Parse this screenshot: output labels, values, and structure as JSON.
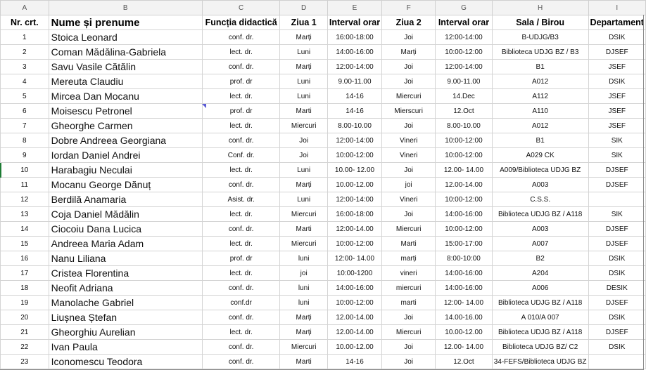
{
  "columns": [
    "A",
    "B",
    "C",
    "D",
    "E",
    "F",
    "G",
    "H",
    "I"
  ],
  "headers": [
    "Nr. crt.",
    "Nume și prenume",
    "Funcția didactică",
    "Ziua 1",
    "Interval orar",
    "Ziua 2",
    "Interval orar",
    "Sala / Birou",
    "Departament"
  ],
  "rows": [
    [
      "1",
      "Stoica Leonard",
      "conf. dr.",
      "Marți",
      "16:00-18:00",
      "Joi",
      "12:00-14:00",
      "B-UDJG/B3",
      "DSIK"
    ],
    [
      "2",
      "Coman Mădălina-Gabriela",
      "lect. dr.",
      "Luni",
      "14:00-16:00",
      "Marți",
      "10:00-12:00",
      "Biblioteca UDJG BZ / B3",
      "DJSEF"
    ],
    [
      "3",
      "Savu Vasile Cătălin",
      "conf. dr.",
      "Marți",
      "12:00-14:00",
      "Joi",
      "12:00-14:00",
      "B1",
      "JSEF"
    ],
    [
      "4",
      "Mereuta Claudiu",
      "prof. dr",
      "Luni",
      "9.00-11.00",
      "Joi",
      "9.00-11.00",
      "A012",
      "DSIK"
    ],
    [
      "5",
      "Mircea Dan Mocanu",
      "lect. dr.",
      "Luni",
      "14-16",
      "Miercuri",
      "14.Dec",
      "A112",
      "JSEF"
    ],
    [
      "6",
      "Moisescu Petronel",
      "prof. dr",
      "Marti",
      "14-16",
      "Mierscuri",
      "12.Oct",
      "A110",
      "JSEF"
    ],
    [
      "7",
      "Gheorghe Carmen",
      "lect. dr.",
      "Miercuri",
      "8.00-10.00",
      "Joi",
      "8.00-10.00",
      "A012",
      "JSEF"
    ],
    [
      "8",
      "Dobre Andreea Georgiana",
      "conf. dr.",
      "Joi",
      "12:00-14:00",
      "Vineri",
      "10:00-12:00",
      "B1",
      "SIK"
    ],
    [
      "9",
      "Iordan Daniel Andrei",
      "Conf. dr.",
      "Joi",
      "10:00-12:00",
      "Vineri",
      "10:00-12:00",
      "A029 CK",
      "SIK"
    ],
    [
      "10",
      "Harabagiu Neculai",
      "lect. dr.",
      "Luni",
      "10.00- 12.00",
      "Joi",
      "12.00- 14.00",
      "A009/Biblioteca UDJG BZ",
      "DJSEF"
    ],
    [
      "11",
      "Mocanu George Dănuț",
      "conf. dr.",
      "Marți",
      "10.00-12.00",
      "joi",
      "12.00-14.00",
      "A003",
      "DJSEF"
    ],
    [
      "12",
      "Berdilă Anamaria",
      "Asist. dr.",
      "Luni",
      "12:00-14:00",
      "Vineri",
      "10:00-12:00",
      "C.S.S.",
      ""
    ],
    [
      "13",
      "Coja Daniel Mădălin",
      "lect. dr.",
      "Miercuri",
      "16:00-18:00",
      "Joi",
      "14:00-16:00",
      "Biblioteca UDJG BZ / A118",
      "SIK"
    ],
    [
      "14",
      "Ciocoiu Dana Lucica",
      "conf. dr.",
      "Marti",
      "12:00-14.00",
      "Miercuri",
      "10:00-12:00",
      "A003",
      "DJSEF"
    ],
    [
      "15",
      "Andreea Maria Adam",
      "lect. dr.",
      "Miercuri",
      "10:00-12:00",
      "Marti",
      "15:00-17:00",
      "A007",
      "DJSEF"
    ],
    [
      "16",
      "Nanu Liliana",
      "prof. dr",
      "luni",
      "12:00- 14.00",
      "marți",
      "8:00-10:00",
      "B2",
      "DSIK"
    ],
    [
      "17",
      "Cristea Florentina",
      "lect. dr.",
      "joi",
      "10:00-1200",
      "vineri",
      "14:00-16:00",
      "A204",
      "DSIK"
    ],
    [
      "18",
      "Neofit Adriana",
      "conf. dr.",
      "luni",
      "14:00-16:00",
      "miercuri",
      "14:00-16:00",
      "A006",
      "DESIK"
    ],
    [
      "19",
      "Manolache Gabriel",
      "conf.dr",
      "luni",
      "10:00-12:00",
      "marti",
      "12:00- 14.00",
      "Biblioteca UDJG BZ / A118",
      "DJSEF"
    ],
    [
      "20",
      "Liușnea Ștefan",
      "conf. dr.",
      "Marți",
      "12.00-14.00",
      "Joi",
      "14.00-16.00",
      "A 010/A 007",
      "DSIK"
    ],
    [
      "21",
      "Gheorghiu Aurelian",
      "lect. dr.",
      "Marți",
      "12.00-14.00",
      "Miercuri",
      "10.00-12.00",
      "Biblioteca UDJG BZ / A118",
      "DJSEF"
    ],
    [
      "22",
      "Ivan Paula",
      "conf. dr.",
      "Miercuri",
      "10.00-12.00",
      "Joi",
      "12.00- 14.00",
      "Biblioteca UDJG BZ/ C2",
      "DSIK"
    ],
    [
      "23",
      "Iconomescu Teodora",
      "conf. dr.",
      "Marti",
      "14-16",
      "Joi",
      "12.Oct",
      "34-FEFS/Biblioteca UDJG BZ",
      ""
    ]
  ]
}
